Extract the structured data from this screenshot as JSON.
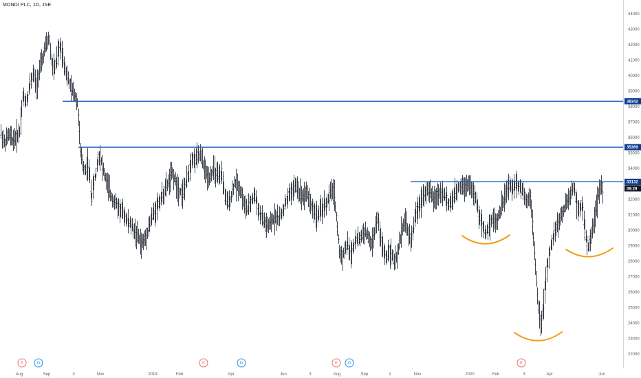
{
  "chart_data": {
    "type": "candlestick",
    "title": "MONDI PLC, 1D, JSE",
    "ylim": [
      21700,
      44800
    ],
    "y_ticks": [
      22000,
      23000,
      24000,
      25000,
      26000,
      27000,
      28000,
      29000,
      30000,
      31000,
      32000,
      33000,
      34000,
      35000,
      36000,
      37000,
      38000,
      39000,
      40000,
      41000,
      42000,
      43000,
      44000
    ],
    "x_labels": [
      "Aug",
      "Sep",
      "3",
      "Nov",
      "2019",
      "Feb",
      "Apr",
      "Jun",
      "3",
      "Aug",
      "Sep",
      "2",
      "Nov",
      "2020",
      "Feb",
      "3",
      "Apr",
      "Jun"
    ],
    "price_path": [
      [
        0,
        36400
      ],
      [
        6,
        35600
      ],
      [
        12,
        36200
      ],
      [
        18,
        35800
      ],
      [
        24,
        36100
      ],
      [
        28,
        36400
      ],
      [
        30,
        37500
      ],
      [
        33,
        38700
      ],
      [
        38,
        38300
      ],
      [
        43,
        39500
      ],
      [
        48,
        40200
      ],
      [
        52,
        39200
      ],
      [
        56,
        40300
      ],
      [
        61,
        41000
      ],
      [
        65,
        41800
      ],
      [
        68,
        42100
      ],
      [
        71,
        42500
      ],
      [
        74,
        41100
      ],
      [
        77,
        40400
      ],
      [
        80,
        40600
      ],
      [
        84,
        41500
      ],
      [
        88,
        41900
      ],
      [
        92,
        40900
      ],
      [
        96,
        40100
      ],
      [
        100,
        39500
      ],
      [
        104,
        39000
      ],
      [
        108,
        38800
      ],
      [
        112,
        38200
      ],
      [
        114,
        37200
      ],
      [
        116,
        35200
      ],
      [
        118,
        34600
      ],
      [
        121,
        34100
      ],
      [
        124,
        33900
      ],
      [
        127,
        34300
      ],
      [
        130,
        33400
      ],
      [
        133,
        32100
      ],
      [
        136,
        33100
      ],
      [
        139,
        33700
      ],
      [
        142,
        34700
      ],
      [
        145,
        34900
      ],
      [
        148,
        34100
      ],
      [
        152,
        33500
      ],
      [
        156,
        32900
      ],
      [
        160,
        32300
      ],
      [
        165,
        31900
      ],
      [
        170,
        31600
      ],
      [
        175,
        31300
      ],
      [
        180,
        31000
      ],
      [
        185,
        30600
      ],
      [
        190,
        30300
      ],
      [
        195,
        29900
      ],
      [
        200,
        29600
      ],
      [
        205,
        29100
      ],
      [
        210,
        29400
      ],
      [
        215,
        30100
      ],
      [
        220,
        30800
      ],
      [
        225,
        31300
      ],
      [
        230,
        31800
      ],
      [
        235,
        32200
      ],
      [
        240,
        32700
      ],
      [
        245,
        33200
      ],
      [
        250,
        33700
      ],
      [
        255,
        33100
      ],
      [
        260,
        32600
      ],
      [
        265,
        32400
      ],
      [
        270,
        33000
      ],
      [
        275,
        33900
      ],
      [
        278,
        34800
      ],
      [
        282,
        34500
      ],
      [
        286,
        34700
      ],
      [
        290,
        34900
      ],
      [
        294,
        34400
      ],
      [
        298,
        33800
      ],
      [
        302,
        33400
      ],
      [
        306,
        33600
      ],
      [
        310,
        33900
      ],
      [
        314,
        33600
      ],
      [
        318,
        33300
      ],
      [
        322,
        33700
      ],
      [
        326,
        32300
      ],
      [
        330,
        31700
      ],
      [
        335,
        32100
      ],
      [
        340,
        33100
      ],
      [
        345,
        32900
      ],
      [
        350,
        32500
      ],
      [
        355,
        31600
      ],
      [
        360,
        31300
      ],
      [
        365,
        31900
      ],
      [
        370,
        32300
      ],
      [
        375,
        31300
      ],
      [
        380,
        30800
      ],
      [
        385,
        30400
      ],
      [
        390,
        30200
      ],
      [
        395,
        30600
      ],
      [
        400,
        30900
      ],
      [
        405,
        30700
      ],
      [
        410,
        31200
      ],
      [
        415,
        31800
      ],
      [
        420,
        32300
      ],
      [
        425,
        32600
      ],
      [
        430,
        32900
      ],
      [
        435,
        32400
      ],
      [
        440,
        32200
      ],
      [
        445,
        32500
      ],
      [
        450,
        31900
      ],
      [
        455,
        31300
      ],
      [
        460,
        30900
      ],
      [
        465,
        31200
      ],
      [
        470,
        31500
      ],
      [
        475,
        31800
      ],
      [
        480,
        32400
      ],
      [
        484,
        32700
      ],
      [
        487,
        31600
      ],
      [
        490,
        30100
      ],
      [
        493,
        28600
      ],
      [
        497,
        28300
      ],
      [
        501,
        28700
      ],
      [
        505,
        29100
      ],
      [
        509,
        28400
      ],
      [
        513,
        28900
      ],
      [
        517,
        29600
      ],
      [
        521,
        29300
      ],
      [
        525,
        29700
      ],
      [
        530,
        29900
      ],
      [
        535,
        29500
      ],
      [
        540,
        29000
      ],
      [
        545,
        30100
      ],
      [
        549,
        30800
      ],
      [
        553,
        29400
      ],
      [
        557,
        28700
      ],
      [
        561,
        28200
      ],
      [
        565,
        28800
      ],
      [
        569,
        28400
      ],
      [
        573,
        27900
      ],
      [
        577,
        28300
      ],
      [
        581,
        29400
      ],
      [
        585,
        30300
      ],
      [
        589,
        30600
      ],
      [
        593,
        29800
      ],
      [
        597,
        29300
      ],
      [
        601,
        30300
      ],
      [
        605,
        31200
      ],
      [
        610,
        31800
      ],
      [
        615,
        32300
      ],
      [
        620,
        32600
      ],
      [
        625,
        32400
      ],
      [
        630,
        32000
      ],
      [
        635,
        32200
      ],
      [
        640,
        32500
      ],
      [
        645,
        32300
      ],
      [
        650,
        31800
      ],
      [
        655,
        31700
      ],
      [
        660,
        32200
      ],
      [
        665,
        32700
      ],
      [
        670,
        33000
      ],
      [
        675,
        32800
      ],
      [
        680,
        33100
      ],
      [
        685,
        32700
      ],
      [
        690,
        32200
      ],
      [
        695,
        31200
      ],
      [
        700,
        30400
      ],
      [
        705,
        29800
      ],
      [
        710,
        30200
      ],
      [
        715,
        30800
      ],
      [
        720,
        30500
      ],
      [
        725,
        31000
      ],
      [
        730,
        31700
      ],
      [
        735,
        32400
      ],
      [
        740,
        32900
      ],
      [
        745,
        32700
      ],
      [
        750,
        33100
      ],
      [
        755,
        32800
      ],
      [
        760,
        32600
      ],
      [
        765,
        31800
      ],
      [
        770,
        32500
      ],
      [
        774,
        30100
      ],
      [
        778,
        27600
      ],
      [
        782,
        25200
      ],
      [
        786,
        23900
      ],
      [
        790,
        25200
      ],
      [
        794,
        27300
      ],
      [
        798,
        28300
      ],
      [
        802,
        29300
      ],
      [
        806,
        29900
      ],
      [
        810,
        30400
      ],
      [
        815,
        30900
      ],
      [
        820,
        31400
      ],
      [
        825,
        31900
      ],
      [
        830,
        32400
      ],
      [
        834,
        32900
      ],
      [
        838,
        31700
      ],
      [
        842,
        31300
      ],
      [
        846,
        31800
      ],
      [
        850,
        29800
      ],
      [
        854,
        28800
      ],
      [
        858,
        29600
      ],
      [
        862,
        30400
      ],
      [
        866,
        31300
      ],
      [
        870,
        32400
      ],
      [
        873,
        32900
      ],
      [
        876,
        32700
      ]
    ],
    "horizontal_lines": [
      {
        "value": 38342,
        "label": "38342",
        "x_start_frac": 0.098,
        "label_color": "#0d3a8c"
      },
      {
        "value": 35369,
        "label": "35369",
        "x_start_frac": 0.122,
        "label_color": "#0d3a8c"
      },
      {
        "value": 33132,
        "label": "33132",
        "x_start_frac": 0.641,
        "label_color": "#0d3a8c"
      }
    ],
    "countdown_label": "39:29",
    "line_color": "#1f5bb8",
    "curve_color": "#f39c12",
    "candle_color": "#131722",
    "events": [
      {
        "letter": "E",
        "color": "#e57373"
      },
      {
        "letter": "D",
        "color": "#2196f3"
      },
      {
        "letter": "E",
        "color": "#e57373"
      },
      {
        "letter": "D",
        "color": "#2196f3"
      },
      {
        "letter": "E",
        "color": "#e57373"
      },
      {
        "letter": "D",
        "color": "#2196f3"
      },
      {
        "letter": "E",
        "color": "#e57373"
      }
    ]
  }
}
